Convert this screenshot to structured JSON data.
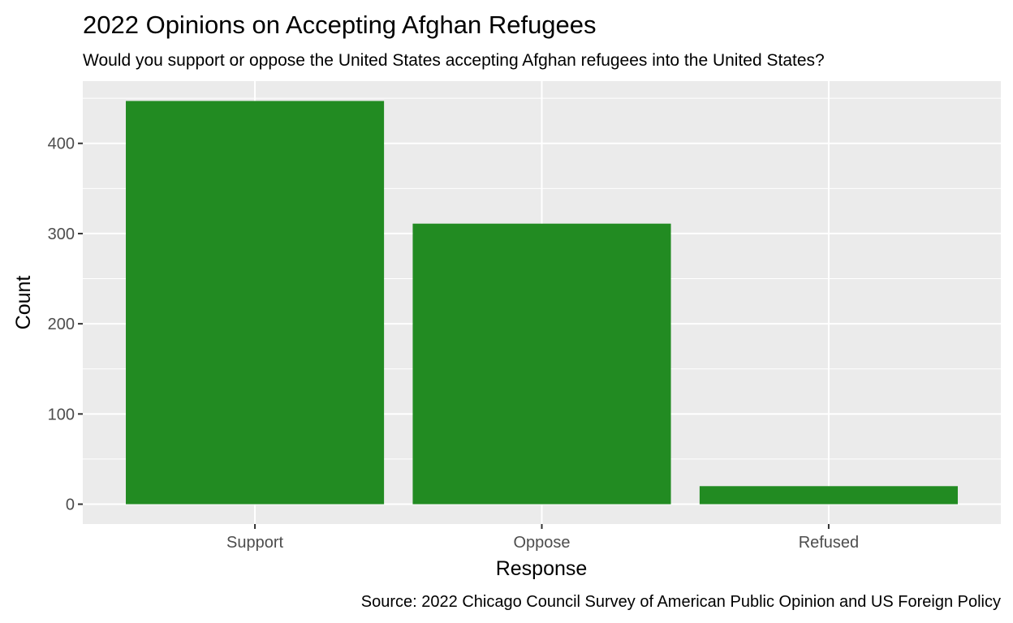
{
  "chart_data": {
    "type": "bar",
    "title": "2022 Opinions on Accepting Afghan Refugees",
    "subtitle": "Would you support or oppose the United States accepting Afghan refugees into the United States?",
    "xlabel": "Response",
    "ylabel": "Count",
    "caption": "Source: 2022 Chicago Council Survey of American Public Opinion and US Foreign Policy",
    "categories": [
      "Support",
      "Oppose",
      "Refused"
    ],
    "values": [
      447,
      311,
      20
    ],
    "ylim": [
      -22,
      469
    ],
    "yticks": [
      0,
      100,
      200,
      300,
      400
    ],
    "ytick_labels": [
      "0",
      "100",
      "200",
      "300",
      "400"
    ],
    "grid": true,
    "bar_color": "#228B22",
    "panel_color": "#EBEBEB",
    "grid_color": "#FFFFFF",
    "legend": "none"
  }
}
